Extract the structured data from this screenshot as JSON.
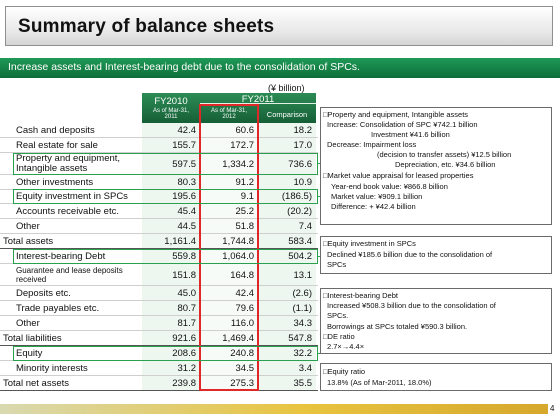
{
  "title": "Summary of balance sheets",
  "banner": "Increase assets and Interest-bearing debt due to the consolidation of SPCs.",
  "unit": "(¥ billion)",
  "header": {
    "fy2010": "FY2010",
    "fy2011": "FY2011",
    "col1_sub1": "As of Mar-31,",
    "col1_sub2": "2011",
    "col2_sub1": "As of Mar-31,",
    "col2_sub2": "2012",
    "comparison": "Comparison"
  },
  "rows": [
    {
      "label": "Cash and deposits",
      "v1": "42.4",
      "v2": "60.6",
      "v3": "18.2"
    },
    {
      "label": "Real estate for sale",
      "v1": "155.7",
      "v2": "172.7",
      "v3": "17.0"
    },
    {
      "label": "Property and equipment,",
      "label2": "Intangible assets",
      "v1": "597.5",
      "v2": "1,334.2",
      "v3": "736.6"
    },
    {
      "label": "Other investments",
      "v1": "80.3",
      "v2": "91.2",
      "v3": "10.9"
    },
    {
      "label": "Equity investment in SPCs",
      "v1": "195.6",
      "v2": "9.1",
      "v3": "(186.5)"
    },
    {
      "label": "Accounts receivable etc.",
      "v1": "45.4",
      "v2": "25.2",
      "v3": "(20.2)"
    },
    {
      "label": "Other",
      "v1": "44.5",
      "v2": "51.8",
      "v3": "7.4"
    },
    {
      "label": "Total assets",
      "v1": "1,161.4",
      "v2": "1,744.8",
      "v3": "583.4"
    },
    {
      "label": "Interest-bearing Debt",
      "v1": "559.8",
      "v2": "1,064.0",
      "v3": "504.2"
    },
    {
      "label": "Guarantee and lease deposits received",
      "v1": "151.8",
      "v2": "164.8",
      "v3": "13.1"
    },
    {
      "label": "Deposits etc.",
      "v1": "45.0",
      "v2": "42.4",
      "v3": "(2.6)"
    },
    {
      "label": "Trade payables etc.",
      "v1": "80.7",
      "v2": "79.6",
      "v3": "(1.1)"
    },
    {
      "label": "Other",
      "v1": "81.7",
      "v2": "116.0",
      "v3": "34.3"
    },
    {
      "label": "Total liabilities",
      "v1": "921.6",
      "v2": "1,469.4",
      "v3": "547.8"
    },
    {
      "label": "Equity",
      "v1": "208.6",
      "v2": "240.8",
      "v3": "32.2"
    },
    {
      "label": "Minority interests",
      "v1": "31.2",
      "v2": "34.5",
      "v3": "3.4"
    },
    {
      "label": "Total net assets",
      "v1": "239.8",
      "v2": "275.3",
      "v3": "35.5"
    }
  ],
  "notes": {
    "pe": [
      "□Property and equipment, Intangible assets",
      "Increase: Consolidation of SPC ¥742.1 billion",
      "Investment ¥41.6 billion",
      "Decrease: Impairment loss",
      "(decision to transfer assets) ¥12.5 billion",
      "Depreciation, etc. ¥34.6 billion",
      "□Market value appraisal for leased properties",
      "Year-end book value: ¥866.8 billion",
      "Market value: ¥909.1 billion",
      "Difference: + ¥42.4 billion"
    ],
    "spc": [
      "□Equity investment in SPCs",
      "Declined ¥185.6 billion due to the consolidation of",
      "SPCs"
    ],
    "debt": [
      "□Interest-bearing Debt",
      "Increased ¥508.3 billion due to the consolidation of",
      "SPCs.",
      "Borrowings at SPCs totaled ¥590.3 billion.",
      "□DE ratio",
      "2.7×→4.4×"
    ],
    "equity": [
      "□Equity ratio",
      "13.8% (As of Mar-2011, 18.0%)"
    ]
  },
  "page_number": "4",
  "colors": {
    "green": "#2aa04f",
    "red": "#e12828",
    "header": "#1f7a45"
  }
}
